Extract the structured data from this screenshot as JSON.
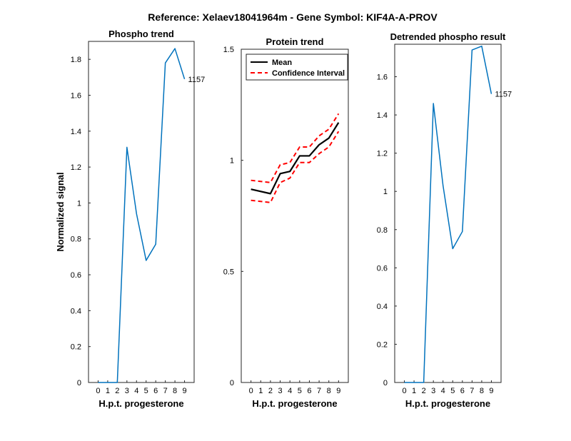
{
  "figure": {
    "title": "Reference:  Xelaev18041964m - Gene Symbol:  KIF4A-A-PROV"
  },
  "chart_data": [
    {
      "type": "line",
      "title": "Phospho trend",
      "xlabel": "H.p.t. progesterone",
      "ylabel": "Normalized signal",
      "x": [
        0,
        1,
        2,
        3,
        4,
        5,
        6,
        7,
        8,
        9
      ],
      "xlim": [
        -1,
        10
      ],
      "ylim": [
        0,
        1.9
      ],
      "yticks": [
        0,
        0.2,
        0.4,
        0.6,
        0.8,
        1,
        1.2,
        1.4,
        1.6,
        1.8
      ],
      "series": [
        {
          "values": [
            0,
            0,
            1.31,
            0.94,
            0.68,
            0.77,
            1.78,
            1.86,
            1.69
          ],
          "color": "#0072BD"
        }
      ],
      "x_values": [
        0,
        2,
        3,
        4,
        5,
        6,
        7,
        8,
        9
      ],
      "annotation": {
        "text": "1157",
        "x": 9,
        "y": 1.69
      }
    },
    {
      "type": "line",
      "title": "Protein trend",
      "xlabel": "H.p.t. progesterone",
      "ylabel": "",
      "x": [
        0,
        1,
        2,
        3,
        4,
        5,
        6,
        7,
        8,
        9
      ],
      "xlim": [
        -1,
        10
      ],
      "ylim": [
        0,
        1.5
      ],
      "yticks": [
        0,
        0.5,
        1,
        1.5
      ],
      "legend": {
        "placement": "top-left",
        "entries": [
          {
            "label": "Mean",
            "color": "#000000",
            "style": "solid"
          },
          {
            "label": "Confidence Interval",
            "color": "#FF0000",
            "style": "dashed"
          }
        ]
      },
      "x_values": [
        0,
        2,
        3,
        4,
        5,
        6,
        7,
        8,
        9
      ],
      "series": [
        {
          "values": [
            0.87,
            0.85,
            0.94,
            0.95,
            1.02,
            1.02,
            1.07,
            1.1,
            1.17
          ],
          "color": "#000000",
          "style": "solid"
        },
        {
          "values": [
            0.91,
            0.9,
            0.98,
            0.99,
            1.06,
            1.06,
            1.11,
            1.14,
            1.21
          ],
          "color": "#FF0000",
          "style": "dashed"
        },
        {
          "values": [
            0.82,
            0.81,
            0.9,
            0.92,
            0.99,
            0.99,
            1.03,
            1.06,
            1.13
          ],
          "color": "#FF0000",
          "style": "dashed"
        }
      ]
    },
    {
      "type": "line",
      "title": "Detrended phospho result",
      "xlabel": "H.p.t. progesterone",
      "ylabel": "",
      "x": [
        0,
        1,
        2,
        3,
        4,
        5,
        6,
        7,
        8,
        9
      ],
      "xlim": [
        -1,
        10
      ],
      "ylim": [
        0,
        1.77
      ],
      "yticks": [
        0,
        0.2,
        0.4,
        0.6,
        0.8,
        1,
        1.2,
        1.4,
        1.6
      ],
      "x_values": [
        0,
        2,
        3,
        4,
        5,
        6,
        7,
        8,
        9
      ],
      "series": [
        {
          "values": [
            0,
            0,
            1.46,
            1.03,
            0.7,
            0.79,
            1.74,
            1.76,
            1.51
          ],
          "color": "#0072BD"
        }
      ],
      "annotation": {
        "text": "1157",
        "x": 9,
        "y": 1.51
      }
    }
  ]
}
